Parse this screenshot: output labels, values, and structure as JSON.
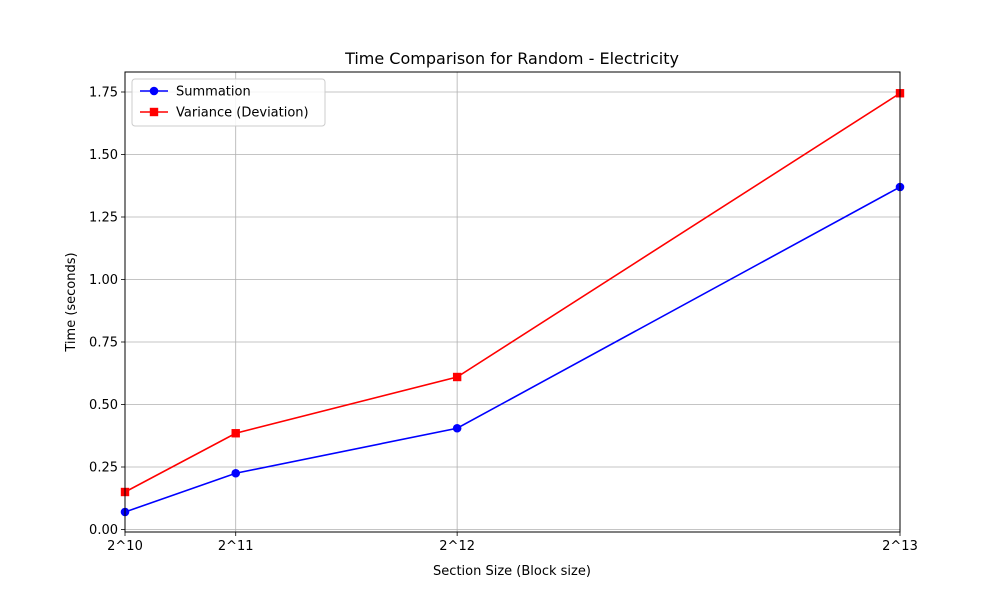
{
  "chart_data": {
    "type": "line",
    "title": "Time Comparison for Random - Electricity",
    "xlabel": "Section Size (Block size)",
    "ylabel": "Time (seconds)",
    "x": [
      1024,
      2048,
      4096,
      8192
    ],
    "x_tick_labels": [
      "2^10",
      "2^11",
      "2^12",
      "2^13"
    ],
    "xlim": [
      1024,
      8192
    ],
    "ylim": [
      -0.01,
      1.83
    ],
    "y_ticks": [
      0.0,
      0.25,
      0.5,
      0.75,
      1.0,
      1.25,
      1.5,
      1.75
    ],
    "y_tick_labels": [
      "0.00",
      "0.25",
      "0.50",
      "0.75",
      "1.00",
      "1.25",
      "1.50",
      "1.75"
    ],
    "grid": true,
    "legend_position": "upper-left",
    "series": [
      {
        "name": "Summation",
        "values": [
          0.07,
          0.225,
          0.405,
          1.37
        ],
        "color": "#0000ff",
        "marker": "circle"
      },
      {
        "name": "Variance (Deviation)",
        "values": [
          0.15,
          0.385,
          0.61,
          1.745
        ],
        "color": "#ff0000",
        "marker": "square"
      }
    ]
  }
}
